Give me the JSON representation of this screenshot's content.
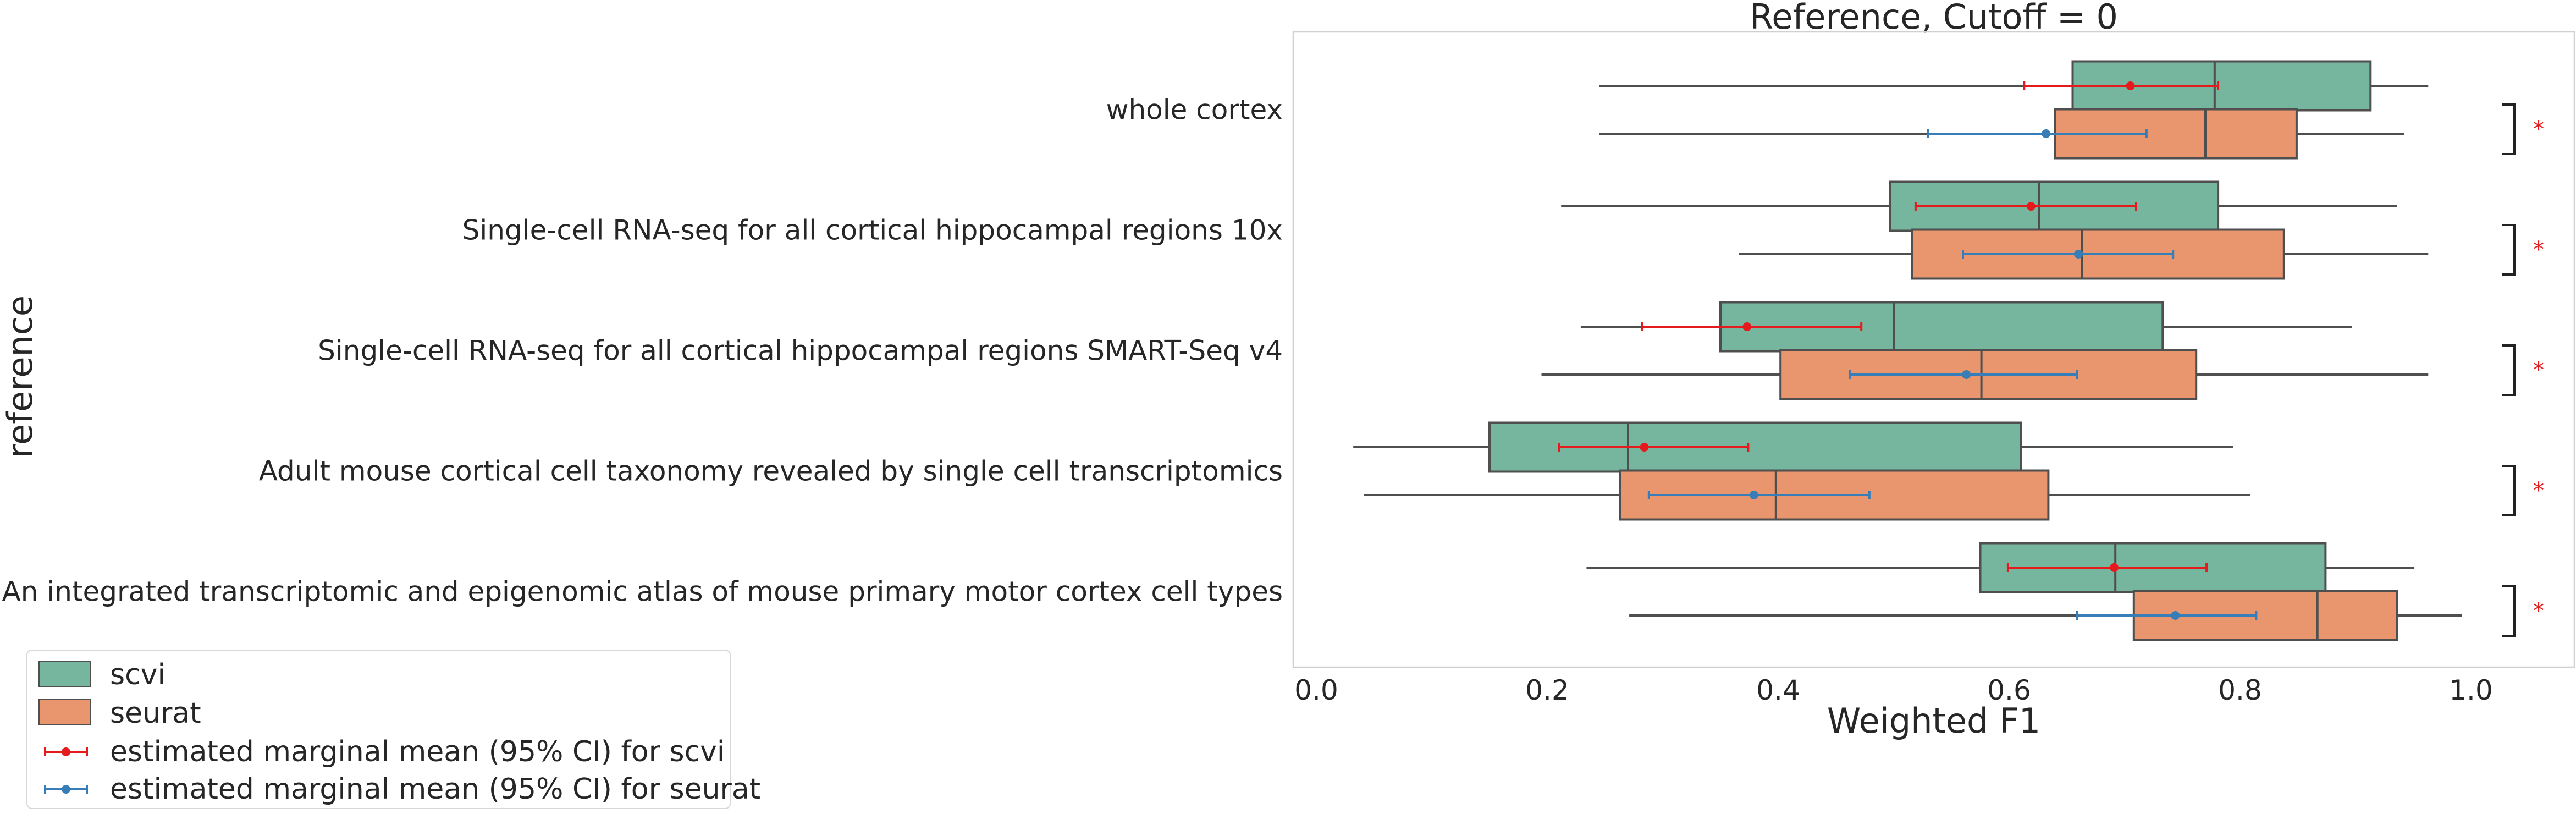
{
  "chart_data": {
    "type": "box",
    "orientation": "horizontal",
    "title": "Reference, Cutoff = 0",
    "xlabel": "Weighted F1",
    "ylabel": "reference",
    "xlim": [
      -0.02,
      1.09
    ],
    "xticks": [
      0.0,
      0.2,
      0.4,
      0.6,
      0.8,
      1.0
    ],
    "xtick_labels": [
      "0.0",
      "0.2",
      "0.4",
      "0.6",
      "0.8",
      "1.0"
    ],
    "grid": false,
    "legend_placement": "lower-left",
    "categories": [
      "whole cortex",
      "Single-cell RNA-seq for all cortical  hippocampal regions 10x",
      "Single-cell RNA-seq for all cortical  hippocampal regions SMART-Seq v4",
      "Adult mouse cortical cell taxonomy revealed by single cell transcriptomics",
      "An integrated transcriptomic and epigenomic atlas of mouse primary motor cortex cell types"
    ],
    "series": [
      {
        "name": "scvi",
        "color": "#76b69e",
        "boxes": [
          {
            "whislo": 0.245,
            "q1": 0.655,
            "med": 0.778,
            "q3": 0.913,
            "whishi": 0.963
          },
          {
            "whislo": 0.212,
            "q1": 0.497,
            "med": 0.626,
            "q3": 0.781,
            "whishi": 0.936
          },
          {
            "whislo": 0.229,
            "q1": 0.35,
            "med": 0.5,
            "q3": 0.733,
            "whishi": 0.897
          },
          {
            "whislo": 0.032,
            "q1": 0.15,
            "med": 0.27,
            "q3": 0.61,
            "whishi": 0.794
          },
          {
            "whislo": 0.234,
            "q1": 0.575,
            "med": 0.692,
            "q3": 0.874,
            "whishi": 0.951
          }
        ]
      },
      {
        "name": "seurat",
        "color": "#e9966f",
        "boxes": [
          {
            "whislo": 0.245,
            "q1": 0.64,
            "med": 0.77,
            "q3": 0.849,
            "whishi": 0.942
          },
          {
            "whislo": 0.366,
            "q1": 0.516,
            "med": 0.663,
            "q3": 0.838,
            "whishi": 0.963
          },
          {
            "whislo": 0.195,
            "q1": 0.402,
            "med": 0.576,
            "q3": 0.762,
            "whishi": 0.963
          },
          {
            "whislo": 0.041,
            "q1": 0.263,
            "med": 0.398,
            "q3": 0.634,
            "whishi": 0.809
          },
          {
            "whislo": 0.271,
            "q1": 0.708,
            "med": 0.867,
            "q3": 0.936,
            "whishi": 0.992
          }
        ]
      }
    ],
    "marginal_means": [
      {
        "name": "estimated marginal mean (95% CI) for scvi",
        "color": "#e41a1c",
        "points": [
          {
            "mean": 0.705,
            "lo": 0.613,
            "hi": 0.781
          },
          {
            "mean": 0.619,
            "lo": 0.519,
            "hi": 0.71
          },
          {
            "mean": 0.373,
            "lo": 0.282,
            "hi": 0.472
          },
          {
            "mean": 0.284,
            "lo": 0.21,
            "hi": 0.374
          },
          {
            "mean": 0.691,
            "lo": 0.599,
            "hi": 0.771
          }
        ]
      },
      {
        "name": "estimated marginal mean (95% CI) for seurat",
        "color": "#377eb8",
        "points": [
          {
            "mean": 0.632,
            "lo": 0.53,
            "hi": 0.719
          },
          {
            "mean": 0.66,
            "lo": 0.56,
            "hi": 0.742
          },
          {
            "mean": 0.563,
            "lo": 0.462,
            "hi": 0.659
          },
          {
            "mean": 0.379,
            "lo": 0.288,
            "hi": 0.479
          },
          {
            "mean": 0.744,
            "lo": 0.659,
            "hi": 0.814
          }
        ]
      }
    ],
    "significance": [
      "*",
      "*",
      "*",
      "*",
      "*"
    ],
    "significance_color": "#e41a1c"
  }
}
